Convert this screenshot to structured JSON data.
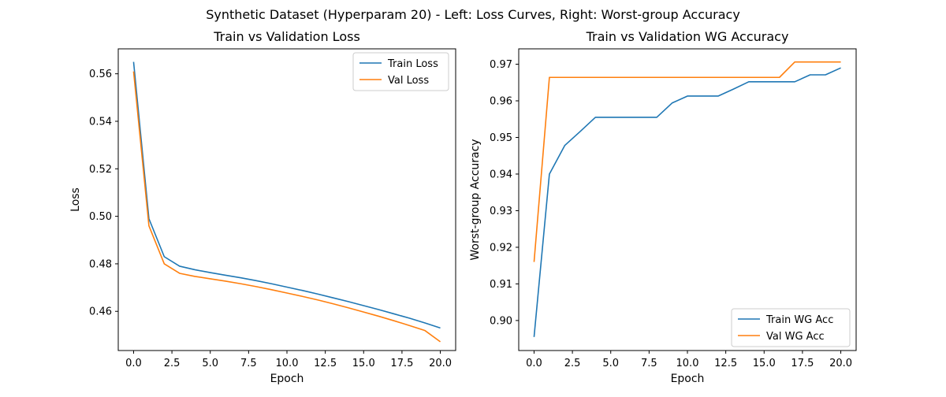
{
  "figure": {
    "suptitle": "Synthetic Dataset (Hyperparam 20) - Left: Loss Curves, Right: Worst-group Accuracy"
  },
  "colors": {
    "train": "#1f77b4",
    "val": "#ff7f0e",
    "axes": "#000000",
    "background": "#ffffff"
  },
  "chart_data": [
    {
      "type": "line",
      "title": "Train vs Validation Loss",
      "xlabel": "Epoch",
      "ylabel": "Loss",
      "xlim": [
        -1.0,
        21.0
      ],
      "ylim": [
        0.4435,
        0.5705
      ],
      "xticks": [
        0.0,
        2.5,
        5.0,
        7.5,
        10.0,
        12.5,
        15.0,
        17.5,
        20.0
      ],
      "xtick_labels": [
        "0.0",
        "2.5",
        "5.0",
        "7.5",
        "10.0",
        "12.5",
        "15.0",
        "17.5",
        "20.0"
      ],
      "yticks": [
        0.46,
        0.48,
        0.5,
        0.52,
        0.54,
        0.56
      ],
      "ytick_labels": [
        "0.46",
        "0.48",
        "0.50",
        "0.52",
        "0.54",
        "0.56"
      ],
      "grid": false,
      "legend_position": "upper right",
      "x": [
        0,
        1,
        2,
        3,
        4,
        5,
        6,
        7,
        8,
        9,
        10,
        11,
        12,
        13,
        14,
        15,
        16,
        17,
        18,
        19,
        20
      ],
      "series": [
        {
          "name": "Train Loss",
          "color": "#1f77b4",
          "values": [
            0.565,
            0.499,
            0.483,
            0.479,
            0.4775,
            0.4763,
            0.4752,
            0.4741,
            0.4729,
            0.4716,
            0.4702,
            0.4688,
            0.4673,
            0.4657,
            0.4641,
            0.4624,
            0.4607,
            0.4589,
            0.4571,
            0.4551,
            0.453
          ]
        },
        {
          "name": "Val Loss",
          "color": "#ff7f0e",
          "values": [
            0.561,
            0.496,
            0.48,
            0.476,
            0.4747,
            0.4737,
            0.4727,
            0.4716,
            0.4704,
            0.4691,
            0.4677,
            0.4663,
            0.4648,
            0.4632,
            0.4615,
            0.4597,
            0.4579,
            0.456,
            0.454,
            0.4519,
            0.4472
          ]
        }
      ]
    },
    {
      "type": "line",
      "title": "Train vs Validation WG Accuracy",
      "xlabel": "Epoch",
      "ylabel": "Worst-group Accuracy",
      "xlim": [
        -1.0,
        21.0
      ],
      "ylim": [
        0.8918,
        0.9742
      ],
      "xticks": [
        0.0,
        2.5,
        5.0,
        7.5,
        10.0,
        12.5,
        15.0,
        17.5,
        20.0
      ],
      "xtick_labels": [
        "0.0",
        "2.5",
        "5.0",
        "7.5",
        "10.0",
        "12.5",
        "15.0",
        "17.5",
        "20.0"
      ],
      "yticks": [
        0.9,
        0.91,
        0.92,
        0.93,
        0.94,
        0.95,
        0.96,
        0.97
      ],
      "ytick_labels": [
        "0.90",
        "0.91",
        "0.92",
        "0.93",
        "0.94",
        "0.95",
        "0.96",
        "0.97"
      ],
      "grid": false,
      "legend_position": "lower right",
      "x": [
        0,
        1,
        2,
        3,
        4,
        5,
        6,
        7,
        8,
        9,
        10,
        11,
        12,
        13,
        14,
        15,
        16,
        17,
        18,
        19,
        20
      ],
      "series": [
        {
          "name": "Train WG Acc",
          "color": "#1f77b4",
          "values": [
            0.8955,
            0.94,
            0.9478,
            0.9516,
            0.9555,
            0.9555,
            0.9555,
            0.9555,
            0.9555,
            0.9594,
            0.9613,
            0.9613,
            0.9613,
            0.9632,
            0.9652,
            0.9652,
            0.9652,
            0.9652,
            0.9671,
            0.9671,
            0.969
          ]
        },
        {
          "name": "Val WG Acc",
          "color": "#ff7f0e",
          "values": [
            0.916,
            0.9664,
            0.9664,
            0.9664,
            0.9664,
            0.9664,
            0.9664,
            0.9664,
            0.9664,
            0.9664,
            0.9664,
            0.9664,
            0.9664,
            0.9664,
            0.9664,
            0.9664,
            0.9664,
            0.9706,
            0.9706,
            0.9706,
            0.9706
          ]
        }
      ]
    }
  ]
}
